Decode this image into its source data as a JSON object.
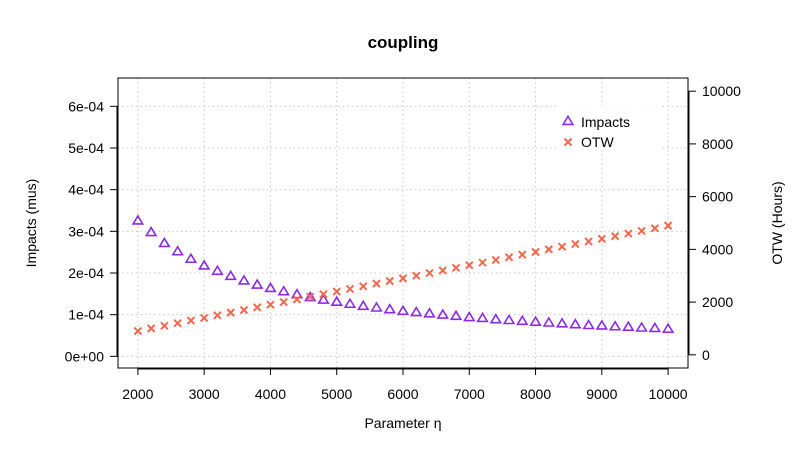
{
  "chart_data": {
    "type": "scatter",
    "title": "coupling",
    "xlabel": "Parameter η",
    "ylabel_left": "Impacts  (mus)",
    "ylabel_right": "OTW (Hours)",
    "xlim": [
      1700,
      10300
    ],
    "ylim_left": [
      -2.8e-05,
      0.000668
    ],
    "ylim_right": [
      -500,
      10500
    ],
    "x_ticks": [
      2000,
      3000,
      4000,
      5000,
      6000,
      7000,
      8000,
      9000,
      10000
    ],
    "x_tick_labels": [
      "2000",
      "3000",
      "4000",
      "5000",
      "6000",
      "7000",
      "8000",
      "9000",
      "10000"
    ],
    "y_left_ticks": [
      0,
      0.0001,
      0.0002,
      0.0003,
      0.0004,
      0.0005,
      0.0006
    ],
    "y_left_tick_labels": [
      "0e+00",
      "1e-04",
      "2e-04",
      "3e-04",
      "4e-04",
      "5e-04",
      "6e-04"
    ],
    "y_right_ticks": [
      0,
      2000,
      4000,
      6000,
      8000,
      10000
    ],
    "y_right_tick_labels": [
      "0",
      "2000",
      "4000",
      "6000",
      "8000",
      "10000"
    ],
    "grid": true,
    "legend_position": "top-right",
    "x": [
      2000,
      2200,
      2400,
      2600,
      2800,
      3000,
      3200,
      3400,
      3600,
      3800,
      4000,
      4200,
      4400,
      4600,
      4800,
      5000,
      5200,
      5400,
      5600,
      5800,
      6000,
      6200,
      6400,
      6600,
      6800,
      7000,
      7200,
      7400,
      7600,
      7800,
      8000,
      8200,
      8400,
      8600,
      8800,
      9000,
      9200,
      9400,
      9600,
      9800,
      10000
    ],
    "series": [
      {
        "name": "Impacts",
        "axis": "left",
        "marker": "triangle",
        "color": "#8a2be2",
        "values": [
          0.000325,
          0.000297,
          0.000271,
          0.000251,
          0.000233,
          0.000217,
          0.000204,
          0.000192,
          0.000181,
          0.000171,
          0.000163,
          0.000155,
          0.000148,
          0.000141,
          0.000135,
          0.00013,
          0.000125,
          0.00012,
          0.000116,
          0.000112,
          0.000108,
          0.000105,
          0.000102,
          9.9e-05,
          9.6e-05,
          9.3e-05,
          9.1e-05,
          8.8e-05,
          8.6e-05,
          8.4e-05,
          8.2e-05,
          8e-05,
          7.8e-05,
          7.6e-05,
          7.4e-05,
          7.3e-05,
          7.1e-05,
          7e-05,
          6.8e-05,
          6.7e-05,
          6.5e-05
        ]
      },
      {
        "name": "OTW",
        "axis": "right",
        "marker": "cross",
        "color": "#f4674f",
        "values": [
          900,
          1000,
          1100,
          1200,
          1300,
          1400,
          1500,
          1600,
          1700,
          1800,
          1900,
          2000,
          2100,
          2200,
          2300,
          2400,
          2500,
          2600,
          2700,
          2800,
          2900,
          3000,
          3100,
          3200,
          3300,
          3400,
          3500,
          3600,
          3700,
          3800,
          3900,
          4000,
          4100,
          4200,
          4300,
          4400,
          4500,
          4600,
          4700,
          4800,
          4900
        ]
      }
    ]
  }
}
